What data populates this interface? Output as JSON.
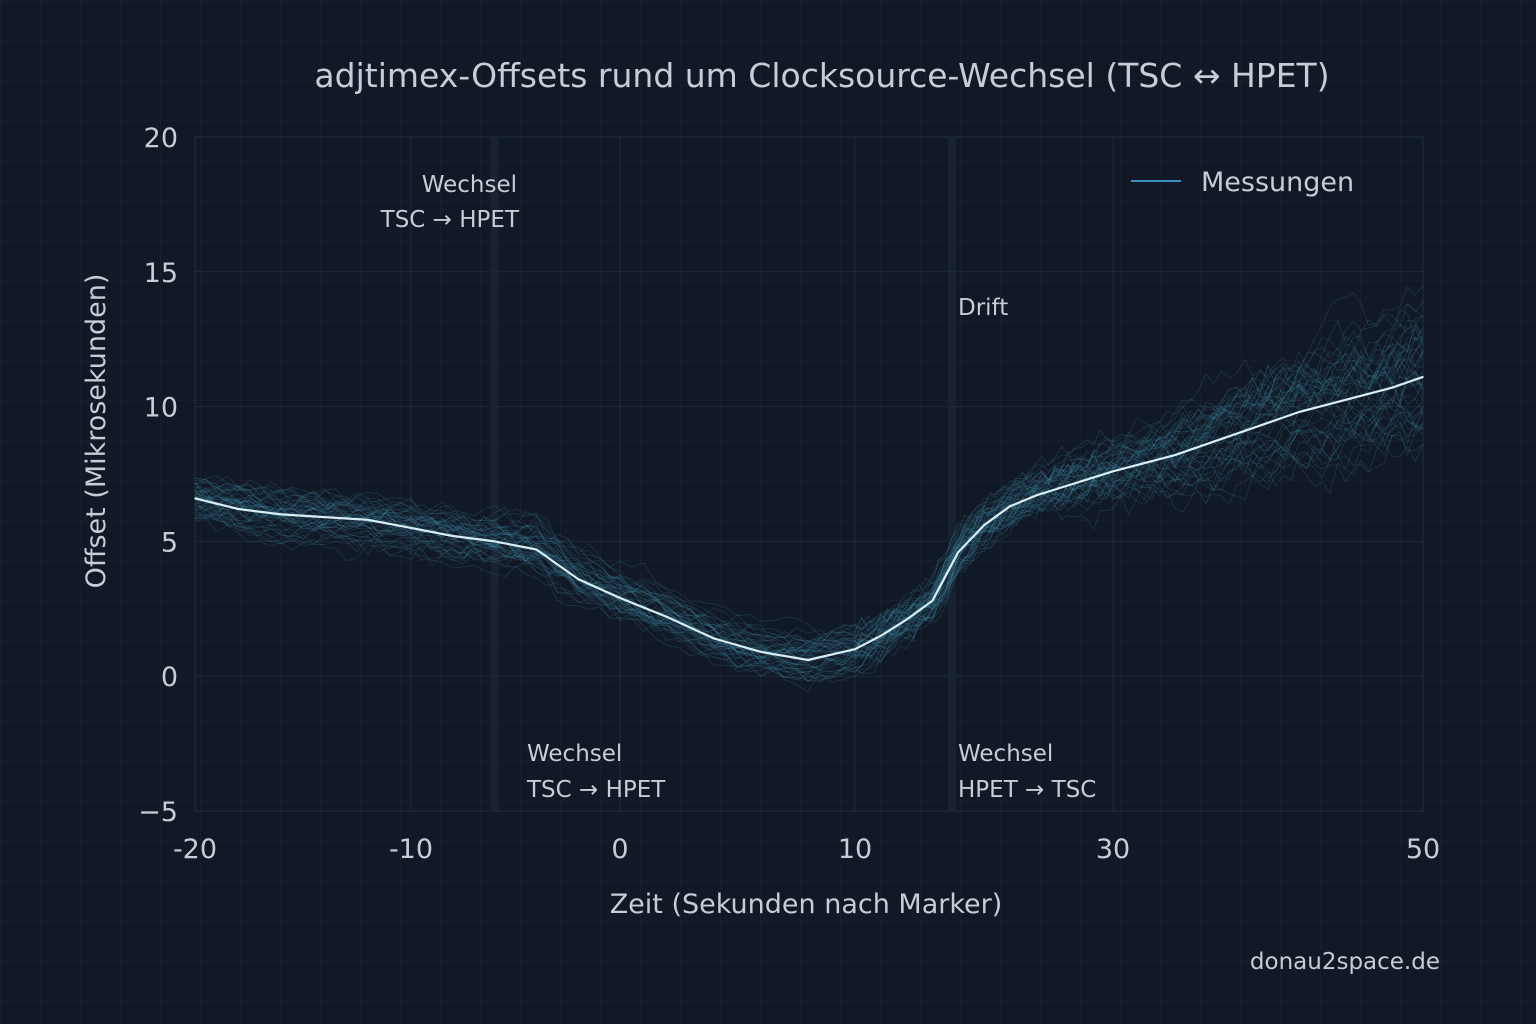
{
  "chart_data": {
    "type": "line",
    "title": "adjtimex-Offsets rund um Clocksource-Wechsel (TSC ↔ HPET)",
    "xlabel": "Zeit (Sekunden nach Marker)",
    "ylabel": "Offset (Mikrosekunden)",
    "xlim": [
      -20,
      50
    ],
    "ylim": [
      -5,
      20
    ],
    "x_ticks": [
      {
        "value": -20,
        "label": "-20"
      },
      {
        "value": -10,
        "label": "-10"
      },
      {
        "value": 0,
        "label": "0"
      },
      {
        "value": 10,
        "label": "10"
      },
      {
        "value": 30,
        "label": "30"
      },
      {
        "value": 50,
        "label": "50"
      }
    ],
    "y_ticks": [
      {
        "value": -5,
        "label": "−5"
      },
      {
        "value": 0,
        "label": "0"
      },
      {
        "value": 5,
        "label": "5"
      },
      {
        "value": 10,
        "label": "10"
      },
      {
        "value": 15,
        "label": "15"
      },
      {
        "value": 20,
        "label": "20"
      }
    ],
    "grid": true,
    "legend": {
      "position": "top-right",
      "entries": [
        "Messungen"
      ]
    },
    "series": [
      {
        "name": "Messungen",
        "x": [
          -20,
          -18,
          -16,
          -14,
          -12,
          -10,
          -8,
          -6,
          -4,
          -2,
          0,
          2,
          4,
          6,
          8,
          10,
          12,
          14,
          16,
          18,
          20,
          22,
          24,
          26,
          28,
          30,
          32,
          34,
          36,
          38,
          40,
          42,
          44,
          46,
          48,
          50
        ],
        "y": [
          6.6,
          6.2,
          6.0,
          5.9,
          5.8,
          5.5,
          5.2,
          5.0,
          4.7,
          3.6,
          2.9,
          2.2,
          1.4,
          0.9,
          0.6,
          1.0,
          1.5,
          2.1,
          2.8,
          4.6,
          5.6,
          6.3,
          6.7,
          7.0,
          7.3,
          7.6,
          7.9,
          8.2,
          8.6,
          9.0,
          9.4,
          9.8,
          10.1,
          10.4,
          10.7,
          11.1
        ]
      }
    ],
    "annotations": [
      {
        "id": "wechsel_top",
        "lines": [
          "Wechsel",
          "TSC → HPET"
        ]
      },
      {
        "id": "wechsel_bottom_1",
        "lines": [
          "Wechsel",
          "TSC → HPET"
        ]
      },
      {
        "id": "wechsel_bottom_2",
        "lines": [
          "Wechsel",
          "HPET → TSC"
        ]
      },
      {
        "id": "drift",
        "lines": [
          "Drift"
        ]
      }
    ],
    "colors": {
      "background": "#111826",
      "mean_line": "#d8eef5",
      "runs": "#4aa3bd",
      "legend_line": "#3a8fc0",
      "grid": "#1e2a38"
    }
  },
  "watermark": "donau2space.de"
}
